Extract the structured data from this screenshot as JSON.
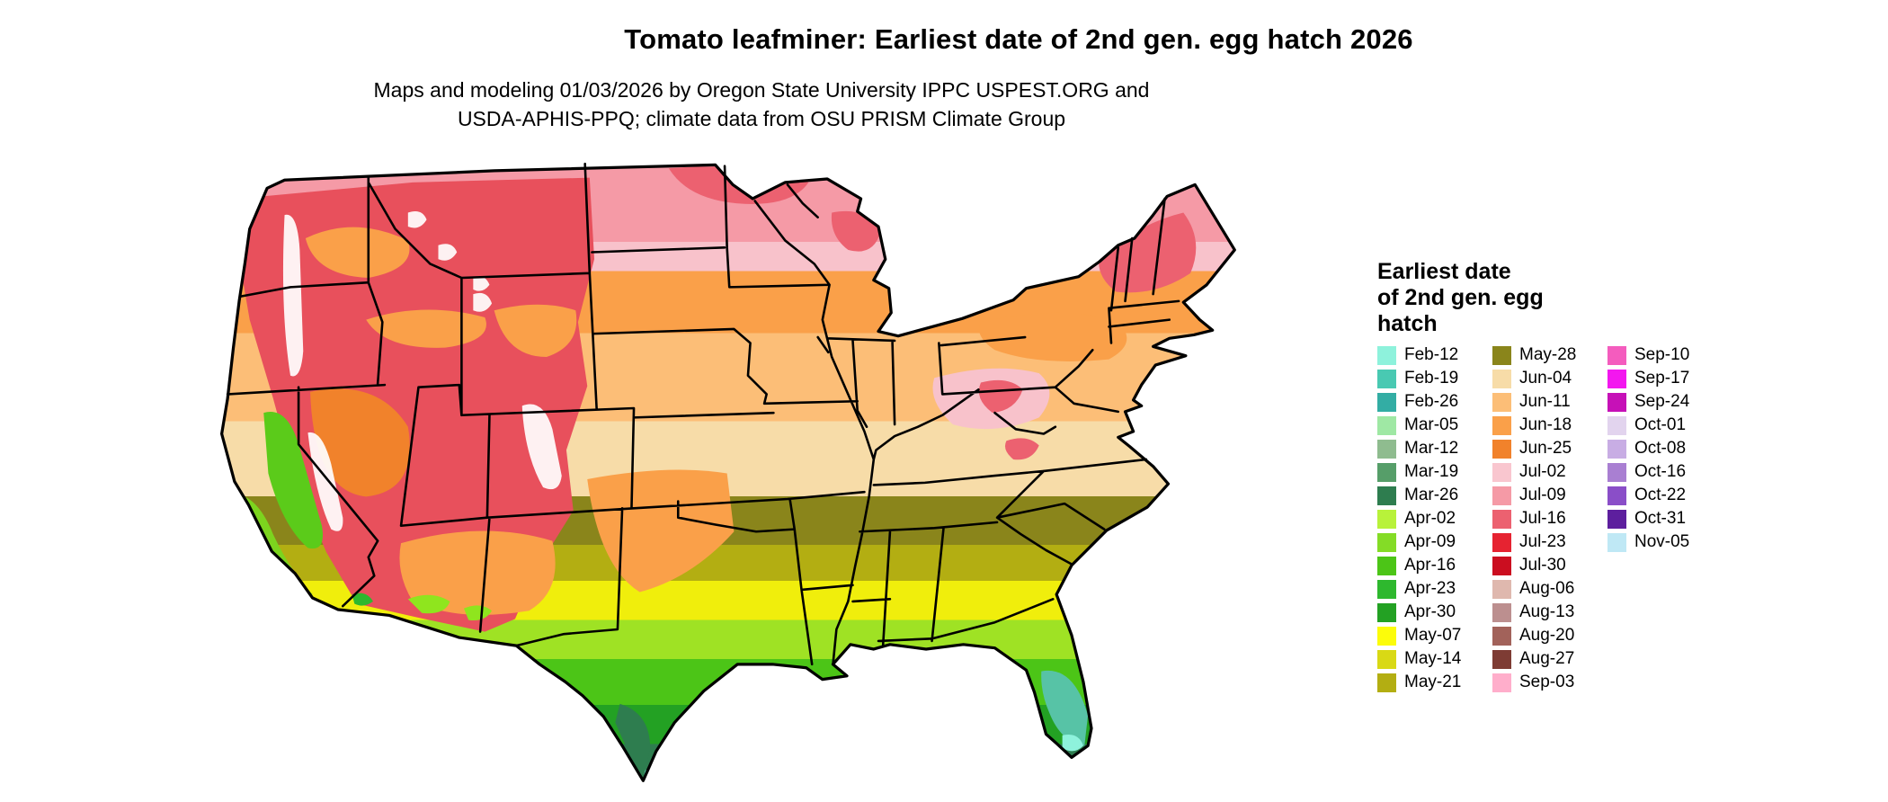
{
  "header": {
    "title": "Tomato leafminer: Earliest date of 2nd gen. egg hatch 2026",
    "subtitle_line1": "Maps and modeling 01/03/2026 by Oregon State University IPPC USPEST.ORG and",
    "subtitle_line2": "USDA-APHIS-PPQ; climate data from OSU PRISM Climate Group"
  },
  "legend": {
    "title_lines": [
      "Earliest date",
      "of 2nd gen. egg",
      "hatch"
    ],
    "columns": [
      {
        "entries": [
          {
            "label": "Feb-12",
            "color": "#8EF2DC"
          },
          {
            "label": "Feb-19",
            "color": "#49C9B2"
          },
          {
            "label": "Feb-26",
            "color": "#33ADA4"
          },
          {
            "label": "Mar-05",
            "color": "#9FE8A4"
          },
          {
            "label": "Mar-12",
            "color": "#8FBC8F"
          },
          {
            "label": "Mar-19",
            "color": "#569E69"
          },
          {
            "label": "Mar-26",
            "color": "#2E7D4F"
          },
          {
            "label": "Apr-02",
            "color": "#B8F23A"
          },
          {
            "label": "Apr-09",
            "color": "#84DC26"
          },
          {
            "label": "Apr-16",
            "color": "#4CC517"
          },
          {
            "label": "Apr-23",
            "color": "#2EB82E"
          },
          {
            "label": "Apr-30",
            "color": "#23A123"
          },
          {
            "label": "May-07",
            "color": "#FCFC0A"
          },
          {
            "label": "May-14",
            "color": "#D9D915"
          },
          {
            "label": "May-21",
            "color": "#B3AE12"
          }
        ]
      },
      {
        "entries": [
          {
            "label": "May-28",
            "color": "#8A851B"
          },
          {
            "label": "Jun-04",
            "color": "#F7DCA8"
          },
          {
            "label": "Jun-11",
            "color": "#FCBE77"
          },
          {
            "label": "Jun-18",
            "color": "#FAA049"
          },
          {
            "label": "Jun-25",
            "color": "#F1822B"
          },
          {
            "label": "Jul-02",
            "color": "#F9C6CF"
          },
          {
            "label": "Jul-09",
            "color": "#F59AA6"
          },
          {
            "label": "Jul-16",
            "color": "#EC6170"
          },
          {
            "label": "Jul-23",
            "color": "#E62331"
          },
          {
            "label": "Jul-30",
            "color": "#CB0E20"
          },
          {
            "label": "Aug-06",
            "color": "#DFB8AE"
          },
          {
            "label": "Aug-13",
            "color": "#BC8F8F"
          },
          {
            "label": "Aug-20",
            "color": "#A2625A"
          },
          {
            "label": "Aug-27",
            "color": "#7E3C34"
          },
          {
            "label": "Sep-03",
            "color": "#FFAECB"
          }
        ]
      },
      {
        "entries": [
          {
            "label": "Sep-10",
            "color": "#F45CBE"
          },
          {
            "label": "Sep-17",
            "color": "#F317EF"
          },
          {
            "label": "Sep-24",
            "color": "#C611B7"
          },
          {
            "label": "Oct-01",
            "color": "#E2D4EE"
          },
          {
            "label": "Oct-08",
            "color": "#C8ADE4"
          },
          {
            "label": "Oct-16",
            "color": "#A97FD2"
          },
          {
            "label": "Oct-22",
            "color": "#8A4EC8"
          },
          {
            "label": "Oct-31",
            "color": "#5D1F9E"
          },
          {
            "label": "Nov-05",
            "color": "#BFE8F5"
          }
        ]
      }
    ]
  },
  "map": {
    "bands": [
      {
        "label": "Jul-09",
        "color": "#F59AA6",
        "from": 0.0,
        "to": 0.145
      },
      {
        "label": "Jul-02",
        "color": "#F8C2CB",
        "from": 0.145,
        "to": 0.19
      },
      {
        "label": "Jun-18",
        "color": "#FAA049",
        "from": 0.19,
        "to": 0.285
      },
      {
        "label": "Jun-11",
        "color": "#FCBE77",
        "from": 0.285,
        "to": 0.42
      },
      {
        "label": "Jun-04",
        "color": "#F7DCA8",
        "from": 0.42,
        "to": 0.535
      },
      {
        "label": "May-28",
        "color": "#8A851B",
        "from": 0.535,
        "to": 0.61
      },
      {
        "label": "May-21",
        "color": "#B3AE12",
        "from": 0.61,
        "to": 0.665
      },
      {
        "label": "May-07",
        "color": "#F0EE0C",
        "from": 0.665,
        "to": 0.725
      },
      {
        "label": "Apr-09",
        "color": "#9FE224",
        "from": 0.725,
        "to": 0.785
      },
      {
        "label": "Apr-16",
        "color": "#4CC517",
        "from": 0.785,
        "to": 0.855
      },
      {
        "label": "Apr-30",
        "color": "#23A123",
        "from": 0.855,
        "to": 0.915
      },
      {
        "label": "Mar-26",
        "color": "#2E7D4F",
        "from": 0.915,
        "to": 0.955
      },
      {
        "label": "Mar-05",
        "color": "#57C3A6",
        "from": 0.955,
        "to": 1.0
      }
    ],
    "region_colors": {
      "west_red": "#E8505C",
      "west_orange": "#FAA049",
      "basin_orange": "#F1822B",
      "valley_green": "#5BCB1A",
      "coast_green": "#7CD41E",
      "desert_green": "#8FE51E",
      "yuma_green": "#2EB82E",
      "mountain_white": "#FFFFFF",
      "north_red": "#EC6170",
      "appalachia_pink": "#F8C2CB",
      "appalachia_red": "#EC6170",
      "mid_atlantic_orange": "#FAA049",
      "florida_teal": "#57C3A6",
      "florida_cyan": "#8EF2DC",
      "south_texas_green": "#2E7D4F",
      "border": "#000000"
    }
  }
}
